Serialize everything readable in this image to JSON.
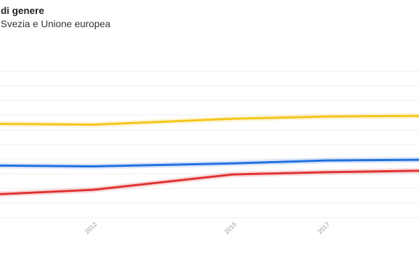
{
  "chart_data": {
    "type": "line",
    "title": "di genere",
    "subtitle": "Svezia e Unione europea",
    "xlabel": "",
    "ylabel": "",
    "x": [
      2010,
      2012,
      2015,
      2017,
      2019
    ],
    "xtick_labels": [
      "2012",
      "2015",
      "2017"
    ],
    "xlim": [
      2010,
      2019
    ],
    "ylim": [
      0,
      1
    ],
    "grid": true,
    "series": [
      {
        "color": "#f5c518",
        "values": [
          0.64,
          0.635,
          0.675,
          0.69,
          0.695
        ]
      },
      {
        "color": "#1f6fe0",
        "values": [
          0.355,
          0.35,
          0.37,
          0.39,
          0.395
        ]
      },
      {
        "color": "#e03131",
        "values": [
          0.16,
          0.19,
          0.295,
          0.31,
          0.32
        ]
      }
    ]
  }
}
